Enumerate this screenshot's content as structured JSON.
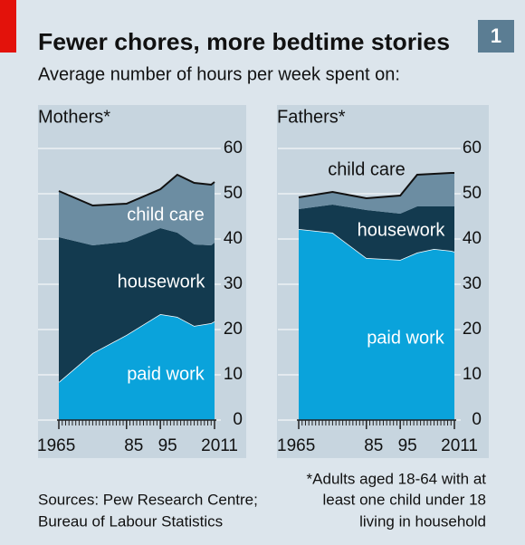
{
  "title": "Fewer chores, more bedtime stories",
  "subtitle": "Average number of hours per week spent on:",
  "chart_number": "1",
  "sources": [
    "Sources: Pew Research Centre;",
    "Bureau of Labour Statistics"
  ],
  "footnote": [
    "*Adults aged 18-64 with at",
    "least one child under 18",
    "living in household"
  ],
  "chart_data": [
    {
      "type": "area",
      "stacked": true,
      "title": "Mothers*",
      "x": [
        1965,
        1975,
        1985,
        1995,
        2000,
        2005,
        2010,
        2011
      ],
      "series": [
        {
          "name": "paid work",
          "color": "#0aa3db",
          "values": [
            8.4,
            14.8,
            18.8,
            23.4,
            22.8,
            20.8,
            21.4,
            21.8
          ]
        },
        {
          "name": "housework",
          "color": "#133a4f",
          "values": [
            32,
            23.8,
            20.6,
            19,
            18.6,
            18,
            17.2,
            17.4
          ]
        },
        {
          "name": "child care",
          "color": "#6c8da2",
          "values": [
            10.2,
            8.8,
            8.4,
            8.6,
            12.8,
            13.6,
            13.4,
            13.4
          ]
        }
      ],
      "xlim": [
        1965,
        2011
      ],
      "xticks": [
        1965,
        {
          "value": 1985,
          "label": "85"
        },
        {
          "value": 1995,
          "label": "95"
        },
        2011
      ],
      "ylim": [
        0,
        60
      ],
      "yticks": [
        0,
        10,
        20,
        30,
        40,
        50,
        60
      ],
      "grid": true
    },
    {
      "type": "area",
      "stacked": true,
      "title": "Fathers*",
      "x": [
        1965,
        1975,
        1985,
        1995,
        2000,
        2005,
        2010,
        2011
      ],
      "series": [
        {
          "name": "paid work",
          "color": "#0aa3db",
          "values": [
            42.2,
            41.4,
            35.8,
            35.4,
            37,
            37.8,
            37.4,
            37.2
          ]
        },
        {
          "name": "housework",
          "color": "#133a4f",
          "values": [
            4.4,
            6.2,
            10.6,
            10.2,
            10.2,
            9.4,
            9.8,
            10
          ]
        },
        {
          "name": "child care",
          "color": "#6c8da2",
          "values": [
            2.6,
            2.8,
            2.6,
            4,
            7,
            7.2,
            7.4,
            7.4
          ]
        }
      ],
      "xlim": [
        1965,
        2011
      ],
      "xticks": [
        1965,
        {
          "value": 1985,
          "label": "85"
        },
        {
          "value": 1995,
          "label": "95"
        },
        2011
      ],
      "ylim": [
        0,
        60
      ],
      "yticks": [
        0,
        10,
        20,
        30,
        40,
        50,
        60
      ],
      "grid": true
    }
  ]
}
